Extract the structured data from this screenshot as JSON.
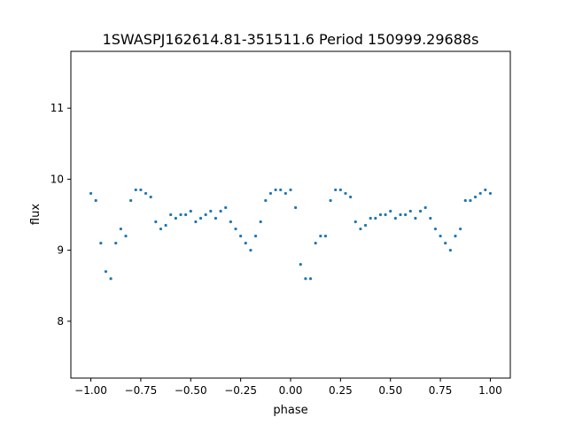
{
  "chart_data": {
    "type": "scatter",
    "title": "1SWASPJ162614.81-351511.6 Period 150999.29688s",
    "xlabel": "phase",
    "ylabel": "flux",
    "xlim": [
      -1.1,
      1.1
    ],
    "ylim": [
      7.2,
      11.8
    ],
    "xticks": [
      -1.0,
      -0.75,
      -0.5,
      -0.25,
      0.0,
      0.25,
      0.5,
      0.75,
      1.0
    ],
    "xtick_labels": [
      "−1.00",
      "−0.75",
      "−0.50",
      "−0.25",
      "0.00",
      "0.25",
      "0.50",
      "0.75",
      "1.00"
    ],
    "yticks": [
      8,
      9,
      10,
      11
    ],
    "ytick_labels": [
      "8",
      "9",
      "10",
      "11"
    ],
    "grid": false,
    "legend": "none",
    "marker_color": "#1f77b4",
    "series": [
      {
        "x": [
          -1.0,
          -0.975,
          -0.95,
          -0.925,
          -0.9,
          -0.875,
          -0.85,
          -0.825,
          -0.8,
          -0.775,
          -0.75,
          -0.725,
          -0.7,
          -0.675,
          -0.65,
          -0.625,
          -0.6,
          -0.575,
          -0.55,
          -0.525,
          -0.5,
          -0.475,
          -0.45,
          -0.425,
          -0.4,
          -0.375,
          -0.35,
          -0.325,
          -0.3,
          -0.275,
          -0.25,
          -0.225,
          -0.2,
          -0.175,
          -0.15,
          -0.125,
          -0.1,
          -0.075,
          -0.05,
          -0.025,
          0.0,
          0.025,
          0.05,
          0.075,
          0.1,
          0.125,
          0.15,
          0.175,
          0.2,
          0.225,
          0.25,
          0.275,
          0.3,
          0.325,
          0.35,
          0.375,
          0.4,
          0.425,
          0.45,
          0.475,
          0.5,
          0.525,
          0.55,
          0.575,
          0.6,
          0.625,
          0.65,
          0.675,
          0.7,
          0.725,
          0.75,
          0.775,
          0.8,
          0.825,
          0.85,
          0.875,
          0.9,
          0.925,
          0.95,
          0.975,
          1.0
        ],
        "y": [
          9.8,
          9.7,
          9.1,
          8.7,
          8.6,
          9.1,
          9.3,
          9.2,
          9.7,
          9.85,
          9.85,
          9.8,
          9.75,
          9.4,
          9.3,
          9.35,
          9.5,
          9.45,
          9.5,
          9.5,
          9.55,
          9.4,
          9.45,
          9.5,
          9.55,
          9.45,
          9.55,
          9.6,
          9.4,
          9.3,
          9.2,
          9.1,
          9.0,
          9.2,
          9.4,
          9.7,
          9.8,
          9.85,
          9.85,
          9.8,
          9.85,
          9.6,
          8.8,
          8.6,
          8.6,
          9.1,
          9.2,
          9.2,
          9.7,
          9.85,
          9.85,
          9.8,
          9.75,
          9.4,
          9.3,
          9.35,
          9.45,
          9.45,
          9.5,
          9.5,
          9.55,
          9.45,
          9.5,
          9.5,
          9.55,
          9.45,
          9.55,
          9.6,
          9.45,
          9.3,
          9.2,
          9.1,
          9.0,
          9.2,
          9.3,
          9.7,
          9.7,
          9.75,
          9.8,
          9.85,
          9.8
        ]
      }
    ]
  }
}
